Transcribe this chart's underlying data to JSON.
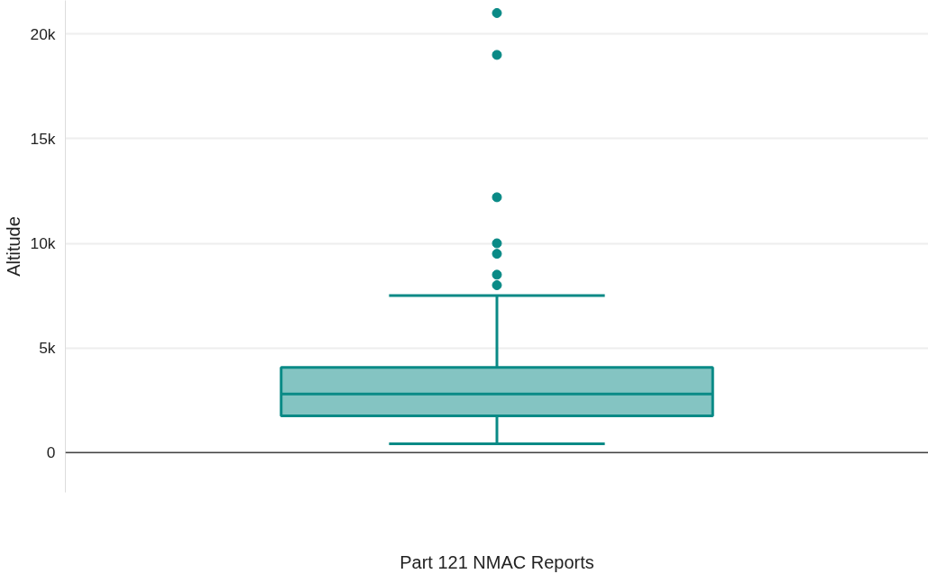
{
  "chart_data": {
    "type": "box",
    "categories": [
      null
    ],
    "xlabel": "Part 121 NMAC Reports",
    "ylabel": "Altitude",
    "series": [
      {
        "color": "#0a8a86",
        "boxes": [
          {
            "low": 420,
            "q1": 1760,
            "median": 2800,
            "q3": 4070,
            "high": 7500,
            "outliers": [
              21000,
              19000,
              12200,
              10000,
              9500,
              8500,
              8000
            ]
          }
        ]
      }
    ],
    "ylim": [
      -1900,
      21600
    ],
    "yticks": [
      {
        "value": 0,
        "label": "0"
      },
      {
        "value": 5000,
        "label": "5k"
      },
      {
        "value": 10000,
        "label": "10k"
      },
      {
        "value": 15000,
        "label": "15k"
      },
      {
        "value": 20000,
        "label": "20k"
      }
    ],
    "grid": "y",
    "ref_lines": [
      {
        "axis": "y",
        "value": 0,
        "color": "#444444"
      }
    ]
  }
}
